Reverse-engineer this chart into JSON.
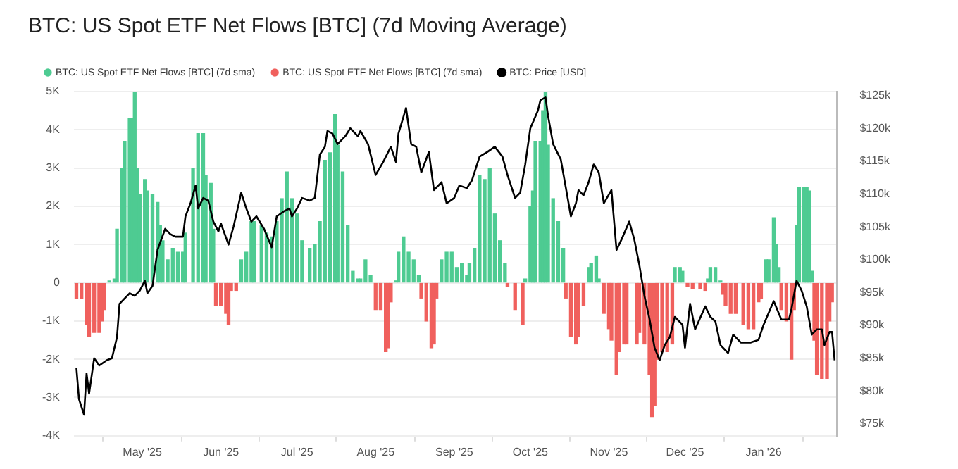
{
  "chart_data": {
    "type": "bar",
    "title": "BTC: US Spot ETF Net Flows [BTC] (7d Moving Average)",
    "legend": "top left",
    "grid": "y",
    "xlim": [
      "2025-04-04",
      "2026-01-30"
    ],
    "xticks": [
      {
        "value": "2025-05-01",
        "label": "May '25"
      },
      {
        "value": "2025-06-01",
        "label": "Jun '25"
      },
      {
        "value": "2025-07-01",
        "label": "Jul '25"
      },
      {
        "value": "2025-08-01",
        "label": "Aug '25"
      },
      {
        "value": "2025-09-01",
        "label": "Sep '25"
      },
      {
        "value": "2025-10-01",
        "label": "Oct '25"
      },
      {
        "value": "2025-11-01",
        "label": "Nov '25"
      },
      {
        "value": "2025-12-01",
        "label": "Dec '25"
      },
      {
        "value": "2026-01-01",
        "label": "Jan '26"
      }
    ],
    "ylim": [
      -4000,
      5000
    ],
    "yticks": [
      {
        "value": -4000,
        "label": "-4K"
      },
      {
        "value": -3000,
        "label": "-3K"
      },
      {
        "value": -2000,
        "label": "-2K"
      },
      {
        "value": -1000,
        "label": "-1K"
      },
      0,
      {
        "value": 1000,
        "label": "1K"
      },
      {
        "value": 2000,
        "label": "2K"
      },
      {
        "value": 3000,
        "label": "3K"
      },
      {
        "value": 4000,
        "label": "4K"
      },
      {
        "value": 5000,
        "label": "5K"
      }
    ],
    "y2lim": [
      73200,
      125600
    ],
    "y2ticks": [
      {
        "value": 75000,
        "label": "$75k"
      },
      {
        "value": 80000,
        "label": "$80k"
      },
      {
        "value": 85000,
        "label": "$85k"
      },
      {
        "value": 90000,
        "label": "$90k"
      },
      {
        "value": 95000,
        "label": "$95k"
      },
      {
        "value": 100000,
        "label": "$100k"
      },
      {
        "value": 105000,
        "label": "$105k"
      },
      {
        "value": 110000,
        "label": "$110k"
      },
      {
        "value": 115000,
        "label": "$115k"
      },
      {
        "value": 120000,
        "label": "$120k"
      },
      {
        "value": 125000,
        "label": "$125k"
      }
    ],
    "series": [
      {
        "name": "BTC: US Spot ETF Net Flows [BTC] (7d sma)",
        "color": "#4ecb92",
        "x": [
          "2025-04-18",
          "2025-04-20",
          "2025-04-21",
          "2025-04-23",
          "2025-04-24",
          "2025-04-26",
          "2025-04-27",
          "2025-04-28",
          "2025-04-29",
          "2025-04-30",
          "2025-05-02",
          "2025-05-03",
          "2025-05-05",
          "2025-05-07",
          "2025-05-08",
          "2025-05-09",
          "2025-05-11",
          "2025-05-13",
          "2025-05-15",
          "2025-05-17",
          "2025-05-18",
          "2025-05-21",
          "2025-05-23",
          "2025-05-25",
          "2025-05-26",
          "2025-05-28",
          "2025-05-29",
          "2025-06-09",
          "2025-06-11",
          "2025-06-13",
          "2025-06-14",
          "2025-06-17",
          "2025-06-19",
          "2025-06-21",
          "2025-06-23",
          "2025-06-25",
          "2025-06-27",
          "2025-06-29",
          "2025-07-01",
          "2025-07-03",
          "2025-07-06",
          "2025-07-08",
          "2025-07-10",
          "2025-07-12",
          "2025-07-14",
          "2025-07-16",
          "2025-07-17",
          "2025-07-19",
          "2025-07-21",
          "2025-07-23",
          "2025-07-25",
          "2025-07-26",
          "2025-07-28",
          "2025-07-30",
          "2025-08-09",
          "2025-08-10",
          "2025-08-12",
          "2025-08-14",
          "2025-08-16",
          "2025-08-18",
          "2025-08-27",
          "2025-08-29",
          "2025-08-31",
          "2025-09-02",
          "2025-09-04",
          "2025-09-06",
          "2025-09-07",
          "2025-09-09",
          "2025-09-11",
          "2025-09-13",
          "2025-09-15",
          "2025-09-17",
          "2025-09-19",
          "2025-09-21",
          "2025-09-29",
          "2025-10-01",
          "2025-10-02",
          "2025-10-03",
          "2025-10-05",
          "2025-10-06",
          "2025-10-07",
          "2025-10-08",
          "2025-10-10",
          "2025-10-12",
          "2025-10-14",
          "2025-10-24",
          "2025-10-25",
          "2025-10-27",
          "2025-10-28",
          "2025-11-27",
          "2025-11-29",
          "2025-11-30",
          "2025-12-10",
          "2025-12-11",
          "2025-12-13",
          "2025-12-15",
          "2026-01-02",
          "2026-01-03",
          "2026-01-05",
          "2026-01-06",
          "2026-01-07",
          "2026-01-14",
          "2026-01-15",
          "2026-01-17",
          "2026-01-18",
          "2026-01-19",
          "2026-01-20"
        ],
        "values": [
          50,
          100,
          1400,
          3000,
          3700,
          4300,
          4300,
          5000,
          3000,
          2300,
          2700,
          2400,
          2300,
          2100,
          1500,
          1100,
          600,
          900,
          800,
          800,
          1300,
          3000,
          3900,
          3900,
          2800,
          2600,
          1400,
          600,
          800,
          1600,
          1600,
          1500,
          1300,
          1200,
          1600,
          2200,
          2900,
          2200,
          1800,
          1100,
          900,
          1000,
          1600,
          3200,
          3400,
          4400,
          3600,
          2900,
          1500,
          300,
          100,
          100,
          600,
          200,
          50,
          800,
          1200,
          800,
          600,
          200,
          600,
          800,
          800,
          400,
          500,
          200,
          500,
          900,
          2800,
          2700,
          3000,
          1800,
          1100,
          500,
          100,
          2000,
          2400,
          3700,
          3700,
          4500,
          5000,
          3600,
          2200,
          1600,
          900,
          400,
          500,
          700,
          100,
          400,
          400,
          300,
          100,
          400,
          400,
          50,
          600,
          600,
          1700,
          1000,
          400,
          1500,
          2500,
          2500,
          2500,
          2400,
          300
        ]
      },
      {
        "name": "BTC: US Spot ETF Net Flows [BTC] (7d sma)",
        "color": "#f0605d",
        "x": [
          "2025-04-05",
          "2025-04-07",
          "2025-04-09",
          "2025-04-10",
          "2025-04-12",
          "2025-04-14",
          "2025-04-15",
          "2025-04-16",
          "2025-05-30",
          "2025-06-01",
          "2025-06-03",
          "2025-06-04",
          "2025-06-05",
          "2025-06-07",
          "2025-08-01",
          "2025-08-03",
          "2025-08-05",
          "2025-08-06",
          "2025-08-07",
          "2025-08-19",
          "2025-08-21",
          "2025-08-23",
          "2025-08-24",
          "2025-08-25",
          "2025-09-22",
          "2025-09-25",
          "2025-09-28",
          "2025-10-15",
          "2025-10-17",
          "2025-10-19",
          "2025-10-20",
          "2025-10-22",
          "2025-10-30",
          "2025-11-01",
          "2025-11-02",
          "2025-11-04",
          "2025-11-05",
          "2025-11-07",
          "2025-11-08",
          "2025-11-12",
          "2025-11-13",
          "2025-11-15",
          "2025-11-17",
          "2025-11-18",
          "2025-11-19",
          "2025-11-20",
          "2025-11-22",
          "2025-11-24",
          "2025-11-26",
          "2025-12-02",
          "2025-12-04",
          "2025-12-07",
          "2025-12-09",
          "2025-12-16",
          "2025-12-17",
          "2025-12-19",
          "2025-12-21",
          "2025-12-24",
          "2025-12-26",
          "2025-12-28",
          "2025-12-30",
          "2025-12-31",
          "2026-01-08",
          "2026-01-10",
          "2026-01-12",
          "2026-01-13",
          "2026-01-21",
          "2026-01-22",
          "2026-01-24",
          "2026-01-26",
          "2026-01-27",
          "2026-01-28"
        ],
        "values": [
          -400,
          -400,
          -1100,
          -1400,
          -1300,
          -1300,
          -1000,
          -700,
          -600,
          -600,
          -800,
          -1100,
          -200,
          -200,
          -700,
          -700,
          -1800,
          -1700,
          -500,
          -400,
          -1000,
          -1700,
          -1600,
          -400,
          -100,
          -700,
          -1100,
          -400,
          -1400,
          -1600,
          -1400,
          -600,
          -800,
          -1200,
          -1500,
          -2400,
          -1800,
          -1600,
          -1600,
          -1600,
          -1300,
          -1600,
          -2400,
          -3500,
          -3200,
          -2000,
          -1800,
          -1800,
          -1600,
          -100,
          -150,
          -150,
          -200,
          -300,
          -600,
          -800,
          -800,
          -1100,
          -1200,
          -1200,
          -500,
          -400,
          -700,
          -1000,
          -2000,
          -700,
          -1500,
          -2400,
          -2500,
          -2500,
          -1000,
          -500
        ]
      },
      {
        "name": "BTC: Price [USD]",
        "type": "line",
        "axis": "y2",
        "color": "#000000",
        "x": [
          "2025-04-05",
          "2025-04-06",
          "2025-04-08",
          "2025-04-09",
          "2025-04-10",
          "2025-04-12",
          "2025-04-14",
          "2025-04-17",
          "2025-04-19",
          "2025-04-21",
          "2025-04-22",
          "2025-04-24",
          "2025-04-26",
          "2025-04-28",
          "2025-04-30",
          "2025-05-02",
          "2025-05-03",
          "2025-05-05",
          "2025-05-07",
          "2025-05-10",
          "2025-05-12",
          "2025-05-14",
          "2025-05-17",
          "2025-05-18",
          "2025-05-20",
          "2025-05-22",
          "2025-05-23",
          "2025-05-25",
          "2025-05-27",
          "2025-05-29",
          "2025-05-31",
          "2025-06-01",
          "2025-06-04",
          "2025-06-06",
          "2025-06-09",
          "2025-06-11",
          "2025-06-13",
          "2025-06-15",
          "2025-06-18",
          "2025-06-21",
          "2025-06-23",
          "2025-06-26",
          "2025-06-28",
          "2025-06-29",
          "2025-07-01",
          "2025-07-03",
          "2025-07-06",
          "2025-07-08",
          "2025-07-10",
          "2025-07-12",
          "2025-07-13",
          "2025-07-15",
          "2025-07-17",
          "2025-07-20",
          "2025-07-22",
          "2025-07-25",
          "2025-07-26",
          "2025-07-29",
          "2025-08-01",
          "2025-08-04",
          "2025-08-07",
          "2025-08-09",
          "2025-08-10",
          "2025-08-13",
          "2025-08-15",
          "2025-08-17",
          "2025-08-19",
          "2025-08-22",
          "2025-08-24",
          "2025-08-27",
          "2025-08-29",
          "2025-09-01",
          "2025-09-03",
          "2025-09-06",
          "2025-09-08",
          "2025-09-11",
          "2025-09-14",
          "2025-09-17",
          "2025-09-20",
          "2025-09-22",
          "2025-09-25",
          "2025-09-27",
          "2025-09-29",
          "2025-10-01",
          "2025-10-04",
          "2025-10-05",
          "2025-10-07",
          "2025-10-08",
          "2025-10-10",
          "2025-10-13",
          "2025-10-15",
          "2025-10-17",
          "2025-10-19",
          "2025-10-20",
          "2025-10-22",
          "2025-10-24",
          "2025-10-26",
          "2025-10-28",
          "2025-10-30",
          "2025-11-02",
          "2025-11-04",
          "2025-11-06",
          "2025-11-09",
          "2025-11-11",
          "2025-11-13",
          "2025-11-15",
          "2025-11-17",
          "2025-11-19",
          "2025-11-21",
          "2025-11-23",
          "2025-11-25",
          "2025-11-27",
          "2025-11-30",
          "2025-12-01",
          "2025-12-03",
          "2025-12-05",
          "2025-12-09",
          "2025-12-11",
          "2025-12-13",
          "2025-12-15",
          "2025-12-18",
          "2025-12-20",
          "2025-12-23",
          "2025-12-27",
          "2025-12-30",
          "2026-01-01",
          "2026-01-05",
          "2026-01-08",
          "2026-01-11",
          "2026-01-12",
          "2026-01-14",
          "2026-01-16",
          "2026-01-18",
          "2026-01-20",
          "2026-01-22",
          "2026-01-24",
          "2026-01-25",
          "2026-01-27",
          "2026-01-28",
          "2026-01-29"
        ],
        "values": [
          83500,
          78800,
          76400,
          82700,
          79600,
          85000,
          83900,
          84700,
          85000,
          88200,
          93300,
          94100,
          94900,
          94500,
          95300,
          96800,
          94900,
          96000,
          101500,
          104700,
          103900,
          103500,
          103500,
          106600,
          108600,
          111300,
          107800,
          109400,
          109000,
          105800,
          104300,
          105500,
          102300,
          105100,
          110200,
          107800,
          105800,
          106600,
          104700,
          101900,
          106600,
          107400,
          107800,
          106600,
          107800,
          109400,
          109000,
          109400,
          116000,
          117200,
          119600,
          119200,
          117600,
          118800,
          120000,
          118800,
          119600,
          117600,
          112900,
          114900,
          117200,
          114900,
          119200,
          123100,
          117600,
          117200,
          113300,
          116400,
          110600,
          111800,
          108600,
          109400,
          111300,
          110900,
          112100,
          115700,
          116400,
          117200,
          115700,
          112900,
          109400,
          110200,
          114500,
          120000,
          122700,
          124300,
          124700,
          121900,
          117600,
          115300,
          111000,
          106600,
          108600,
          110600,
          109800,
          111800,
          114500,
          113300,
          108600,
          110600,
          101500,
          103100,
          105800,
          103100,
          99200,
          94500,
          91000,
          86600,
          84700,
          87000,
          88200,
          91300,
          90100,
          86600,
          93300,
          89400,
          92900,
          91300,
          90600,
          87000,
          85800,
          88600,
          87400,
          87400,
          87800,
          90100,
          93700,
          90900,
          90900,
          92500,
          96800,
          95300,
          92900,
          88600,
          89400,
          89400,
          87000,
          89000,
          89000,
          84700
        ]
      }
    ]
  }
}
